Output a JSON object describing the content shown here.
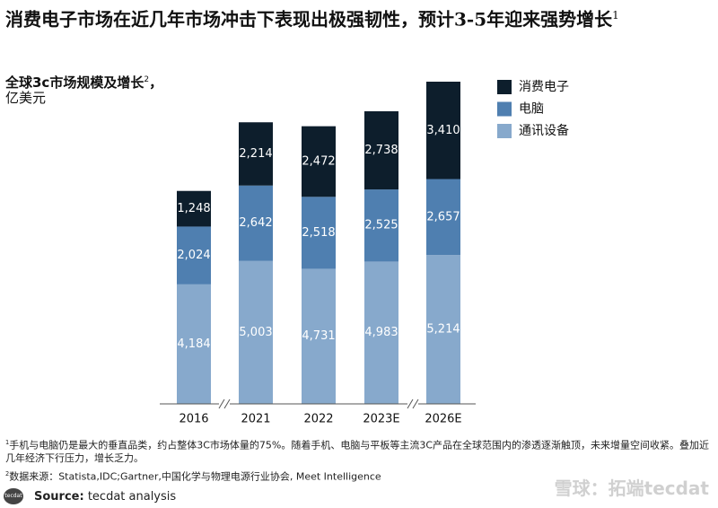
{
  "chart_data": {
    "type": "stacked-bar",
    "title": "消费电子市场在近几年市场冲击下表现出极强韧性，预计3-5年迎来强势增长",
    "title_sup": "1",
    "subtitle": "全球3c市场规模及增长",
    "subtitle_sup": "2",
    "subtitle_end": "，",
    "unit": "亿美元",
    "categories": [
      "2016",
      "2021",
      "2022",
      "2023E",
      "2026E"
    ],
    "series": [
      {
        "name": "通讯设备",
        "color": "#87a9cc",
        "values": [
          4184,
          5003,
          4731,
          4983,
          5214
        ],
        "value_labels": [
          "4,184",
          "5,003",
          "4,731",
          "4,983",
          "5,214"
        ]
      },
      {
        "name": "电脑",
        "color": "#4f7fb0",
        "values": [
          2024,
          2642,
          2518,
          2525,
          2657
        ],
        "value_labels": [
          "2,024",
          "2,642",
          "2,518",
          "2,525",
          "2,657"
        ]
      },
      {
        "name": "消费电子",
        "color": "#0d1e2c",
        "values": [
          1248,
          2214,
          2472,
          2738,
          3410
        ],
        "value_labels": [
          "1,248",
          "2,214",
          "2,472",
          "2,738",
          "3,410"
        ]
      }
    ],
    "notes": [
      {
        "marker": "1",
        "text": "手机与电脑仍是最大的垂直品类，约占整体3C市场体量的75%。随着手机、电脑与平板等主流3C产品在全球范围内的渗透逐渐触顶，未来增量空间收紧。叠加近几年经济下行压力，增长乏力。"
      },
      {
        "marker": "2",
        "text": "数据来源：Statista,IDC;Gartner,中国化学与物理电源行业协会, Meet Intelligence"
      }
    ],
    "source_label": "Source:",
    "source": "tecdat analysis",
    "logo": "tecdat",
    "watermark": "雪球：拓端tecdat"
  }
}
